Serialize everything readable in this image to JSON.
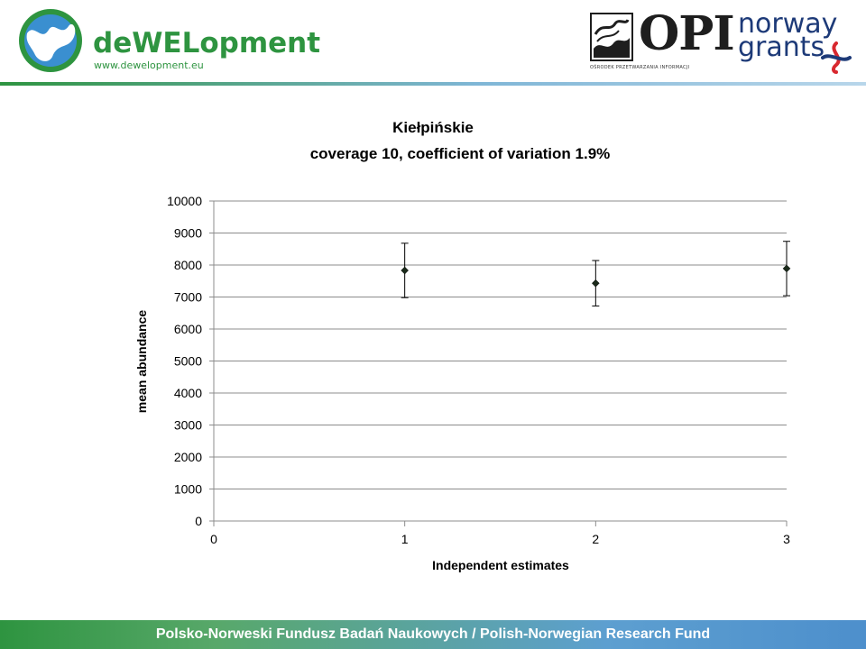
{
  "header": {
    "brand_name": "deWELopment",
    "brand_url": "www.dewelopment.eu",
    "opi_text": "OPI",
    "opi_subtext": "OŚRODEK PRZETWARZANIA INFORMACJI",
    "norway_line1": "norway",
    "norway_line2": "grants",
    "colors": {
      "brand_green": "#2e9440",
      "norway_blue": "#1d3a78",
      "norway_red": "#d8282f"
    }
  },
  "footer": {
    "text": "Polsko-Norweski Fundusz Badań Naukowych / Polish-Norwegian Research Fund"
  },
  "chart_data": {
    "type": "scatter",
    "title": "Kiełpińskie",
    "subtitle": "coverage 10, coefficient of variation 1.9%",
    "xlabel": "Independent estimates",
    "ylabel": "mean abundance",
    "xlim": [
      0,
      3
    ],
    "ylim": [
      0,
      10000
    ],
    "x_ticks": [
      "0",
      "1",
      "2",
      "3"
    ],
    "y_ticks": [
      "0",
      "1000",
      "2000",
      "3000",
      "4000",
      "5000",
      "6000",
      "7000",
      "8000",
      "9000",
      "10000"
    ],
    "grid": "horizontal",
    "series": [
      {
        "x": [
          1,
          2,
          3
        ],
        "y": [
          7830,
          7430,
          7890
        ],
        "error_low": [
          6980,
          6720,
          7040
        ],
        "error_high": [
          8680,
          8140,
          8740
        ]
      }
    ]
  }
}
